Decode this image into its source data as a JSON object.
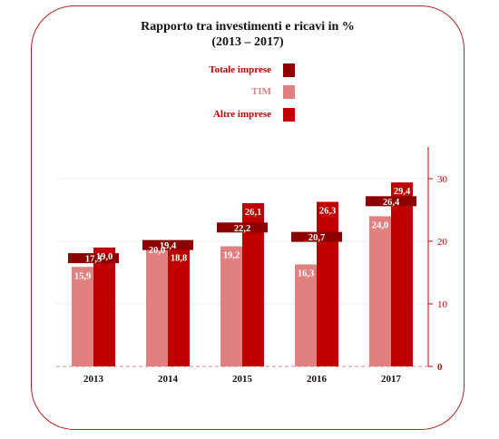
{
  "chart_data": {
    "type": "bar",
    "title": "Rapporto tra investimenti e ricavi in %",
    "subtitle": "(2013 – 2017)",
    "categories": [
      "2013",
      "2014",
      "2015",
      "2016",
      "2017"
    ],
    "series": [
      {
        "name": "Totale imprese",
        "style": "marker",
        "color": "#8b0000",
        "values": [
          17.3,
          19.4,
          22.2,
          20.7,
          26.4
        ],
        "labels": [
          "17,3",
          "19,4",
          "22,2",
          "20,7",
          "26,4"
        ]
      },
      {
        "name": "TIM",
        "style": "bar",
        "color": "#e08080",
        "values": [
          15.9,
          20.0,
          19.2,
          16.3,
          24.0
        ],
        "labels": [
          "15,9",
          "20,0",
          "19,2",
          "16,3",
          "24,0"
        ]
      },
      {
        "name": "Altre imprese",
        "style": "bar",
        "color": "#c00000",
        "values": [
          19.0,
          18.8,
          26.1,
          26.3,
          29.4
        ],
        "labels": [
          "19,0",
          "18,8",
          "26,1",
          "26,3",
          "29,4"
        ]
      }
    ],
    "ylim": [
      0,
      35
    ],
    "yticks": [
      0,
      10,
      20,
      30
    ],
    "y_axis_side": "right",
    "legend_position": "top-center",
    "grid": true
  }
}
